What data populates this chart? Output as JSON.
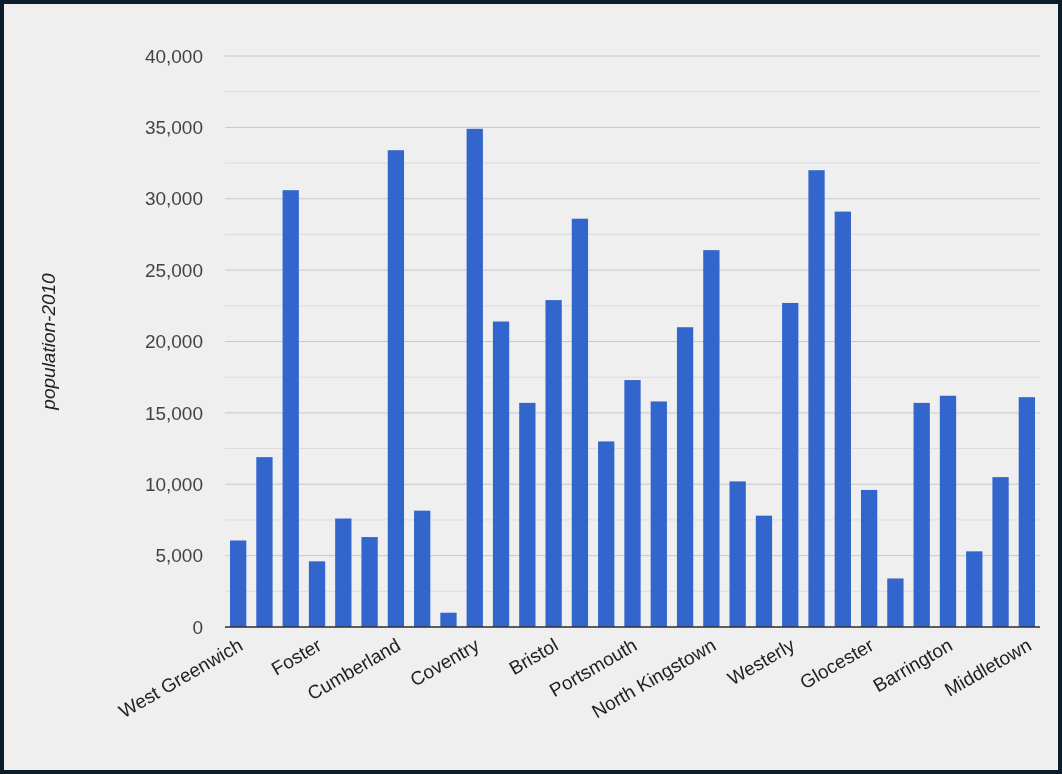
{
  "chart_data": {
    "type": "bar",
    "ylabel": "population-2010",
    "categories": [
      "West Greenwich",
      null,
      null,
      "Foster",
      null,
      null,
      "Cumberland",
      null,
      null,
      "Coventry",
      null,
      null,
      "Bristol",
      null,
      null,
      "Portsmouth",
      null,
      null,
      "North Kingstown",
      null,
      null,
      "Westerly",
      null,
      null,
      "Glocester",
      null,
      null,
      "Barrington",
      null,
      null,
      "Middletown"
    ],
    "values": [
      6060,
      11900,
      30600,
      4600,
      7600,
      6300,
      33400,
      8150,
      1000,
      34900,
      21400,
      15700,
      22900,
      28600,
      13000,
      17300,
      15800,
      21000,
      26400,
      10200,
      7800,
      22700,
      32000,
      29100,
      9600,
      3400,
      15700,
      16200,
      5300,
      10500,
      16100
    ],
    "color": "#3366cc",
    "ylim": [
      0,
      40000
    ],
    "yticks": [
      {
        "value": 0,
        "label": "0"
      },
      {
        "value": 2500,
        "label": null
      },
      {
        "value": 5000,
        "label": "5,000"
      },
      {
        "value": 7500,
        "label": null
      },
      {
        "value": 10000,
        "label": "10,000"
      },
      {
        "value": 12500,
        "label": null
      },
      {
        "value": 15000,
        "label": "15,000"
      },
      {
        "value": 17500,
        "label": null
      },
      {
        "value": 20000,
        "label": "20,000"
      },
      {
        "value": 22500,
        "label": null
      },
      {
        "value": 25000,
        "label": "25,000"
      },
      {
        "value": 27500,
        "label": null
      },
      {
        "value": 30000,
        "label": "30,000"
      },
      {
        "value": 32500,
        "label": null
      },
      {
        "value": 35000,
        "label": "35,000"
      },
      {
        "value": 37500,
        "label": null
      },
      {
        "value": 40000,
        "label": "40,000"
      }
    ],
    "grid": "y"
  }
}
